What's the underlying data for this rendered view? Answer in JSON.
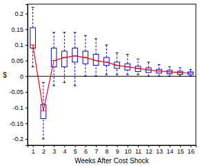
{
  "chart_data": {
    "type": "box",
    "x_label": "Weeks After Cost Shock",
    "y_label": "$",
    "x": [
      1,
      2,
      3,
      4,
      5,
      6,
      7,
      8,
      9,
      10,
      11,
      12,
      13,
      14,
      15,
      16
    ],
    "xlim": [
      0.5,
      16.5
    ],
    "xticks": [
      1,
      2,
      3,
      4,
      5,
      6,
      7,
      8,
      9,
      10,
      11,
      12,
      13,
      14,
      15,
      16
    ],
    "ylim": [
      -0.22,
      0.23
    ],
    "yticks": [
      -0.2,
      -0.15,
      -0.1,
      -0.05,
      0,
      0.05,
      0.1,
      0.15,
      0.2
    ],
    "grid": false,
    "series": [
      {
        "type": "box",
        "color": "#0000ff",
        "low": [
          0.03,
          -0.2,
          -0.03,
          -0.02,
          -0.03,
          0.0,
          0.0,
          0.005,
          0.005,
          0.005,
          0.005,
          0.0,
          0.0,
          0.0,
          0.0,
          0.0
        ],
        "q1": [
          0.09,
          -0.135,
          0.03,
          0.03,
          0.045,
          0.04,
          0.035,
          0.035,
          0.025,
          0.02,
          0.015,
          0.012,
          0.01,
          0.008,
          0.006,
          0.005
        ],
        "q3": [
          0.155,
          -0.09,
          0.09,
          0.08,
          0.09,
          0.08,
          0.07,
          0.06,
          0.045,
          0.04,
          0.032,
          0.027,
          0.022,
          0.019,
          0.016,
          0.014
        ],
        "high": [
          0.22,
          -0.02,
          0.14,
          0.14,
          0.14,
          0.13,
          0.12,
          0.1,
          0.075,
          0.07,
          0.055,
          0.045,
          0.037,
          0.03,
          0.027,
          0.022
        ]
      },
      {
        "type": "line",
        "color": "#ff0000",
        "values": [
          0.1,
          -0.11,
          0.05,
          0.06,
          0.065,
          0.06,
          0.05,
          0.045,
          0.035,
          0.03,
          0.025,
          0.02,
          0.017,
          0.014,
          0.012,
          0.01
        ]
      }
    ]
  }
}
